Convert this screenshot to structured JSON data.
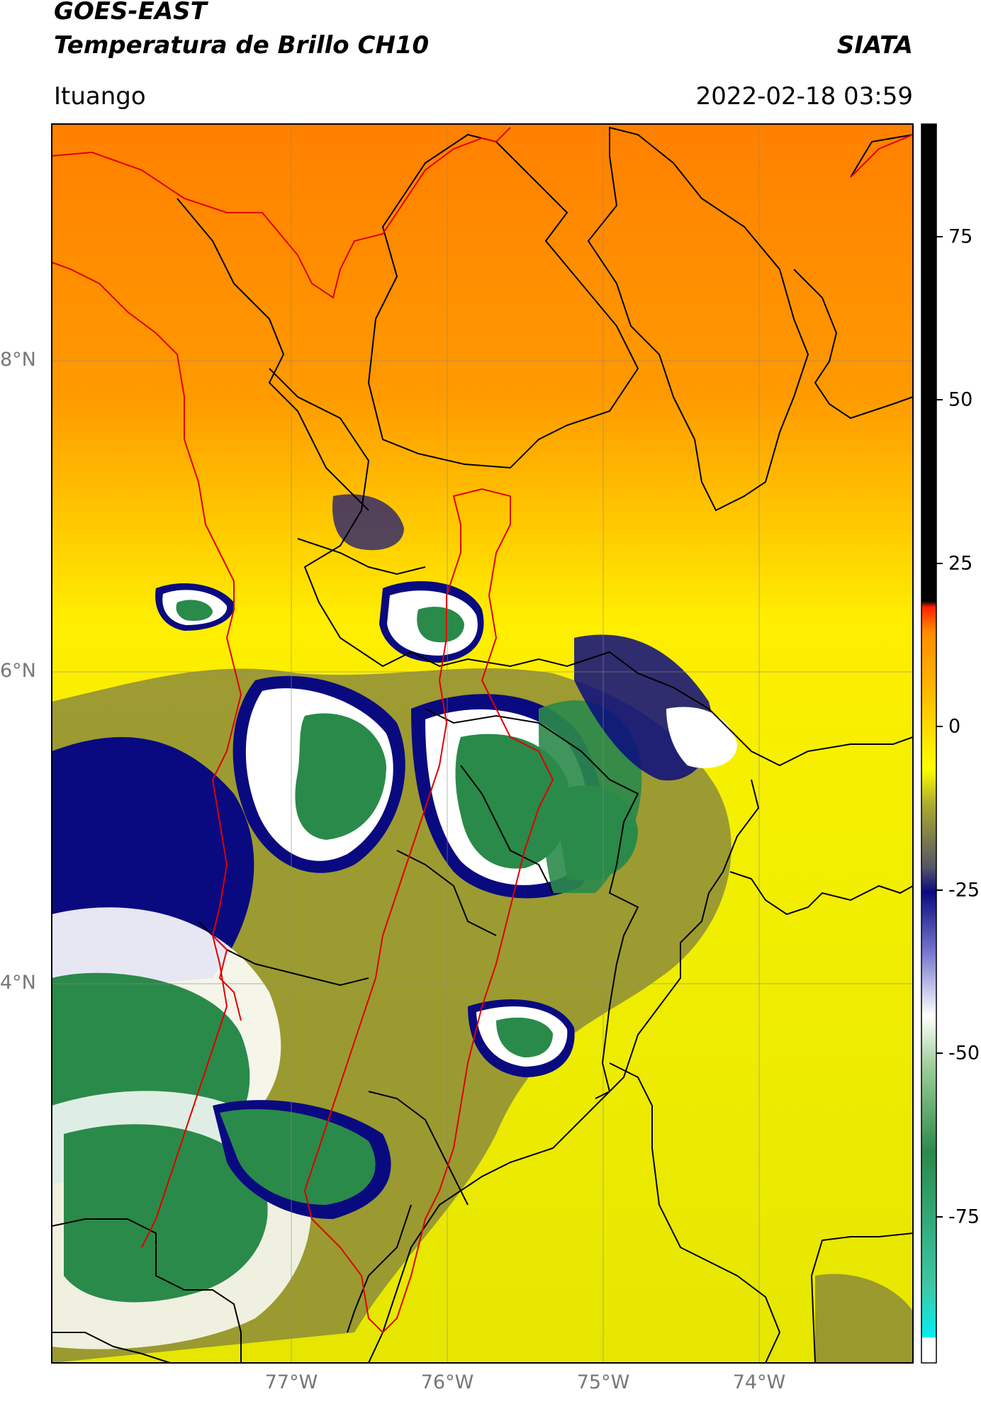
{
  "header": {
    "satellite": "GOES-EAST",
    "product": "Temperatura de Brillo CH10",
    "institution": "SIATA",
    "location": "Ituango",
    "datetime": "2022-02-18 03:59"
  },
  "map": {
    "lat_labels": [
      "8°N",
      "6°N",
      "4°N"
    ],
    "lon_labels": [
      "77°W",
      "76°W",
      "75°W",
      "74°W"
    ],
    "gridlines": true,
    "border_colors": {
      "departments": "#000000",
      "highlight_region": "#e00000"
    }
  },
  "colorbar": {
    "ticks": [
      "75",
      "50",
      "25",
      "0",
      "-25",
      "-50",
      "-75"
    ],
    "colors": {
      "warm_top": "#000000",
      "red": "#ff2200",
      "orange": "#ff8c00",
      "yellow": "#ffff00",
      "olive": "#7a7a3a",
      "navy": "#0a0a80",
      "white": "#ffffff",
      "green": "#2a8a4a",
      "teal": "#3ec9a8",
      "cyan": "#00f0f0"
    }
  }
}
